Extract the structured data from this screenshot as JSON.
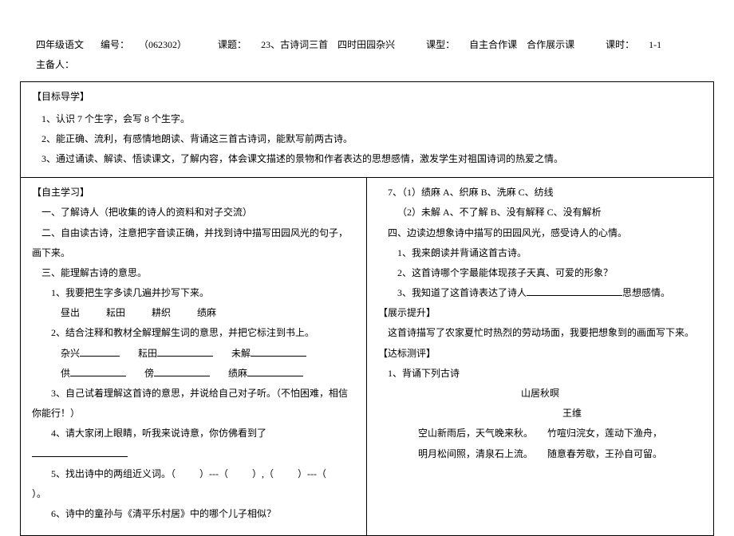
{
  "header": {
    "subject": "四年级语文",
    "code_label": "编号：",
    "code": "（062302）",
    "topic_label": "课题：",
    "topic": "23、古诗词三首　四时田园杂兴",
    "type_label": "课型：",
    "type": "自主合作课　合作展示课",
    "period_label": "课时：",
    "period": "1-1",
    "prep_label": "主备人："
  },
  "goals": {
    "title": "【目标导学】",
    "g1": "1、认识 7 个生字，会写 8 个生字。",
    "g2": "2、能正确、流利，有感情地朗读、背诵这三首古诗词，能默写前两古诗。",
    "g3": "3、通过诵读、解读、悟读课文，了解内容，体会课文描述的景物和作者表达的思想感情，激发学生对祖国诗词的热爱之情。"
  },
  "left": {
    "title": "【自主学习】",
    "i1": "一、了解诗人（把收集的诗人的资料和对子交流）",
    "i2": "二、自由读古诗，注意把字音读正确，并找到诗中描写田园风光的句子，画下来。",
    "i3": "三、能理解古诗的意思。",
    "q1": "1、我要把生字多读几遍并抄写下来。",
    "words1_a": "昼出",
    "words1_b": "耘田",
    "words1_c": "耕织",
    "words1_d": "绩麻",
    "q2": "2、结合注释和教材全解理解生词的意思，并把它标注到书上。",
    "w2a": "杂兴",
    "w2b": "耘田",
    "w2c": "未解",
    "w2d": "供",
    "w2e": "傍",
    "w2f": "绩麻",
    "q3": "3、自己试着理解这首诗的意思，并说给自己对子听。（不怕困难，相信你能行！）",
    "q4": "4、请大家闭上眼睛，听我来说诗意，你仿佛看到了",
    "q5a": "5、找出诗中的两组近义词。（",
    "q5b": "）---（",
    "q5c": "）,（",
    "q5d": "）---（",
    "q5e": "）。",
    "q6": "6、诗中的童孙与《清平乐村居》中的哪个儿子相似？"
  },
  "right": {
    "r7a": "7、（1）绩麻 A、织麻 B、洗麻 C、纺线",
    "r7b": "（2）未解 A、不了解 B、没有解释 C、没有解析",
    "i4": "四、边读边想象诗中描写的田园风光，感受诗人的心情。",
    "s1": "1、我来朗读并背诵这首古诗。",
    "s2": "2、这首诗哪个字最能体现孩子天真、可爱的形象？",
    "s3a": "3、我知道了这首诗表达了诗人",
    "s3b": "思想感情。",
    "show_title": "【展示提升】",
    "show_text": "这首诗描写了农家夏忙时热烈的劳动场面，我要把想象到的画面写下来。",
    "test_title": "【达标测评】",
    "t1": "1、背诵下列古诗",
    "poem_title": "山居秋暝",
    "poem_author": "王维",
    "poem_l1": "空山新雨后，天气晚来秋。　　竹喧归浣女，莲动下渔舟，",
    "poem_l2": "明月松间照，清泉石上流。　　随意春芳歇，王孙自可留。"
  }
}
